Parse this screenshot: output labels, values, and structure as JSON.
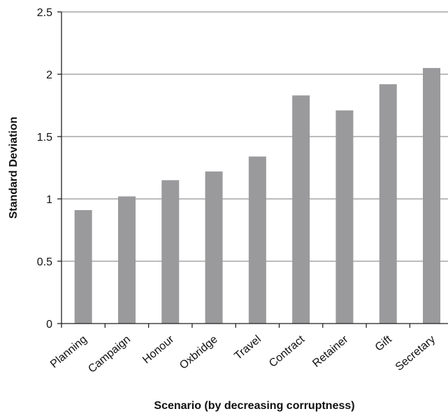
{
  "chart_data": {
    "type": "bar",
    "title": "",
    "xlabel": "Scenario (by decreasing corruptness)",
    "ylabel": "Standard Deviation",
    "categories": [
      "Planning",
      "Campaign",
      "Honour",
      "Oxbridge",
      "Travel",
      "Contract",
      "Retainer",
      "Gift",
      "Secretary"
    ],
    "values": [
      0.91,
      1.02,
      1.15,
      1.22,
      1.34,
      1.83,
      1.71,
      1.92,
      2.05
    ],
    "ylim": [
      0,
      2.5
    ],
    "yticks": [
      "0",
      "0.5",
      "1",
      "1.5",
      "2",
      "2.5"
    ],
    "grid": true,
    "legend": "none",
    "bar_color": "#9a9a9c"
  }
}
